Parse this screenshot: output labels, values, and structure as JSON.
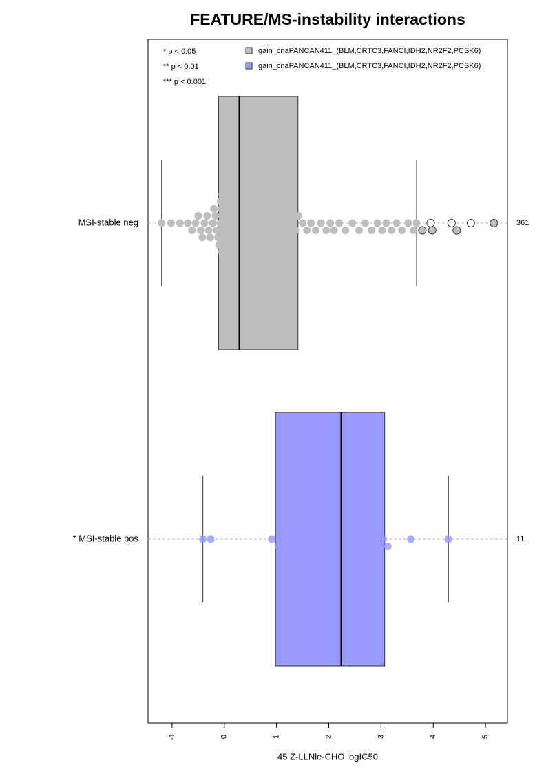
{
  "chart_data": {
    "type": "boxplot",
    "title": "FEATURE/MS-instability interactions",
    "xlabel": "45 Z-LLNle-CHO logIC50",
    "categories": [
      "MSI-stable neg",
      "* MSI-stable pos"
    ],
    "counts": [
      361,
      11
    ],
    "annotations": [
      "* p < 0.05",
      "** p < 0.01",
      "*** p < 0.001"
    ],
    "xlim": [
      -1.46,
      5.42
    ],
    "xticks": [
      -1,
      0,
      1,
      2,
      3,
      4,
      5
    ],
    "grid": true,
    "series": [
      {
        "name": "gain_cnaPANCAN411_(BLM,CRTC3,FANCI,IDH2,NR2F2,PCSK6)",
        "color": "#bebebe",
        "box": {
          "whislo": -1.2,
          "q1": -0.11,
          "med": 0.29,
          "q3": 1.41,
          "whishi": 3.68
        },
        "points": [
          -1.2,
          -1.02,
          -0.85,
          -0.7,
          -0.62,
          -0.55,
          -0.5,
          -0.45,
          -0.42,
          -0.38,
          -0.33,
          -0.3,
          -0.27,
          -0.22,
          -0.2,
          -0.17,
          -0.15,
          -0.12,
          -0.1,
          -0.08,
          -0.07,
          -0.06,
          -0.05,
          -0.04,
          -0.03,
          -0.02,
          -0.01,
          0,
          0.02,
          0.04,
          0.06,
          0.08,
          0.1,
          0.12,
          0.14,
          0.16,
          0.18,
          0.2,
          0.22,
          0.24,
          0.26,
          0.28,
          0.3,
          0.33,
          0.36,
          0.4,
          0.43,
          0.46,
          0.5,
          0.53,
          0.56,
          0.6,
          0.63,
          0.66,
          0.7,
          0.74,
          0.78,
          0.82,
          0.86,
          0.9,
          0.94,
          0.98,
          1.02,
          1.06,
          1.1,
          1.15,
          1.2,
          1.25,
          1.3,
          1.36,
          1.42,
          1.5,
          1.58,
          1.66,
          1.75,
          1.85,
          1.95,
          2.03,
          2.1,
          2.2,
          2.32,
          2.45,
          2.58,
          2.7,
          2.82,
          2.93,
          3.02,
          3.1,
          3.2,
          3.3,
          3.4,
          3.52,
          3.62,
          3.68
        ],
        "outliers": [
          3.79,
          3.95,
          3.98,
          4.35,
          4.45,
          4.72,
          5.16
        ]
      },
      {
        "name": "gain_cnaPANCAN411_(BLM,CRTC3,FANCI,IDH2,NR2F2,PCSK6)",
        "color": "#9999ff",
        "box": {
          "whislo": -0.41,
          "q1": 0.98,
          "med": 2.24,
          "q3": 3.07,
          "whishi": 4.29
        },
        "points": [
          -0.41,
          -0.26,
          0.91,
          1.04,
          1.84,
          2.24,
          2.64,
          3.04,
          3.13,
          3.57,
          4.29
        ],
        "outliers": []
      }
    ]
  }
}
